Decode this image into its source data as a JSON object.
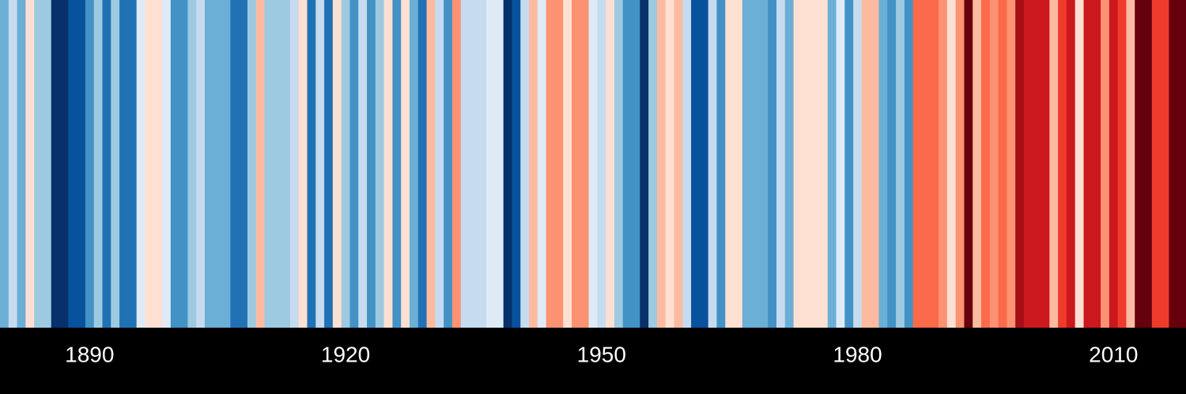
{
  "chart_data": {
    "type": "stripes",
    "x": [
      1880,
      1881,
      1882,
      1883,
      1884,
      1885,
      1886,
      1887,
      1888,
      1889,
      1890,
      1891,
      1892,
      1893,
      1894,
      1895,
      1896,
      1897,
      1898,
      1899,
      1900,
      1901,
      1902,
      1903,
      1904,
      1905,
      1906,
      1907,
      1908,
      1909,
      1910,
      1911,
      1912,
      1913,
      1914,
      1915,
      1916,
      1917,
      1918,
      1919,
      1920,
      1921,
      1922,
      1923,
      1924,
      1925,
      1926,
      1927,
      1928,
      1929,
      1930,
      1931,
      1932,
      1933,
      1934,
      1935,
      1936,
      1937,
      1938,
      1939,
      1940,
      1941,
      1942,
      1943,
      1944,
      1945,
      1946,
      1947,
      1948,
      1949,
      1950,
      1951,
      1952,
      1953,
      1954,
      1955,
      1956,
      1957,
      1958,
      1959,
      1960,
      1961,
      1962,
      1963,
      1964,
      1965,
      1966,
      1967,
      1968,
      1969,
      1970,
      1971,
      1972,
      1973,
      1974,
      1975,
      1976,
      1977,
      1978,
      1979,
      1980,
      1981,
      1982,
      1983,
      1984,
      1985,
      1986,
      1987,
      1988,
      1989,
      1990,
      1991,
      1992,
      1993,
      1994,
      1995,
      1996,
      1997,
      1998,
      1999,
      2000,
      2001,
      2002,
      2003,
      2004,
      2005,
      2006,
      2007,
      2008,
      2009,
      2010,
      2011,
      2012,
      2013,
      2014,
      2015,
      2016,
      2017,
      2018
    ],
    "values": [
      -0.35,
      -0.15,
      -0.35,
      0.05,
      -0.25,
      -0.25,
      -0.75,
      -0.75,
      -0.65,
      -0.65,
      -0.45,
      -0.25,
      -0.55,
      -0.25,
      -0.55,
      -0.55,
      -0.05,
      0.05,
      0.05,
      -0.05,
      -0.45,
      -0.45,
      -0.25,
      -0.15,
      -0.35,
      -0.35,
      -0.35,
      -0.55,
      -0.55,
      -0.25,
      0.15,
      -0.25,
      -0.25,
      -0.25,
      -0.15,
      0.05,
      -0.55,
      -0.15,
      -0.55,
      0.05,
      -0.25,
      -0.45,
      -0.15,
      -0.45,
      -0.25,
      0.05,
      -0.45,
      0.05,
      -0.35,
      -0.55,
      0.15,
      -0.15,
      -0.45,
      0.25,
      -0.15,
      -0.15,
      -0.15,
      -0.05,
      -0.05,
      -0.75,
      -0.65,
      -0.15,
      0.15,
      -0.05,
      0.25,
      0.25,
      0.05,
      0.25,
      0.25,
      -0.05,
      -0.15,
      0.05,
      -0.25,
      -0.45,
      -0.45,
      -0.75,
      -0.25,
      0.15,
      0.05,
      0.15,
      -0.15,
      -0.65,
      -0.65,
      -0.15,
      -0.45,
      0.05,
      0.05,
      -0.35,
      -0.35,
      -0.35,
      -0.45,
      -0.15,
      -0.35,
      0.05,
      0.05,
      0.05,
      0.05,
      -0.35,
      -0.05,
      -0.45,
      -0.15,
      0.15,
      0.15,
      -0.35,
      -0.45,
      -0.25,
      -0.45,
      0.35,
      0.35,
      0.35,
      0.25,
      0.05,
      0.25,
      0.75,
      0.15,
      0.35,
      0.25,
      0.35,
      0.25,
      0.65,
      0.55,
      0.55,
      0.55,
      0.15,
      0.45,
      0.55,
      0.05,
      0.55,
      0.55,
      0.25,
      0.55,
      0.45,
      0.15,
      0.75,
      0.75,
      0.45,
      0.45,
      0.75,
      0.75
    ],
    "colormap": [
      "#08306b",
      "#08519c",
      "#2171b5",
      "#4292c6",
      "#6baed6",
      "#9ecae1",
      "#c6dbef",
      "#deebf7",
      "#fee0d2",
      "#fcbba1",
      "#fc9272",
      "#fb6a4a",
      "#ef3b2c",
      "#cb181d",
      "#a50f15",
      "#67000d"
    ],
    "clim": [
      -0.8,
      0.8
    ],
    "xlim": [
      1880,
      2019
    ],
    "xticks": [
      1890,
      1920,
      1950,
      1980,
      2010
    ]
  }
}
